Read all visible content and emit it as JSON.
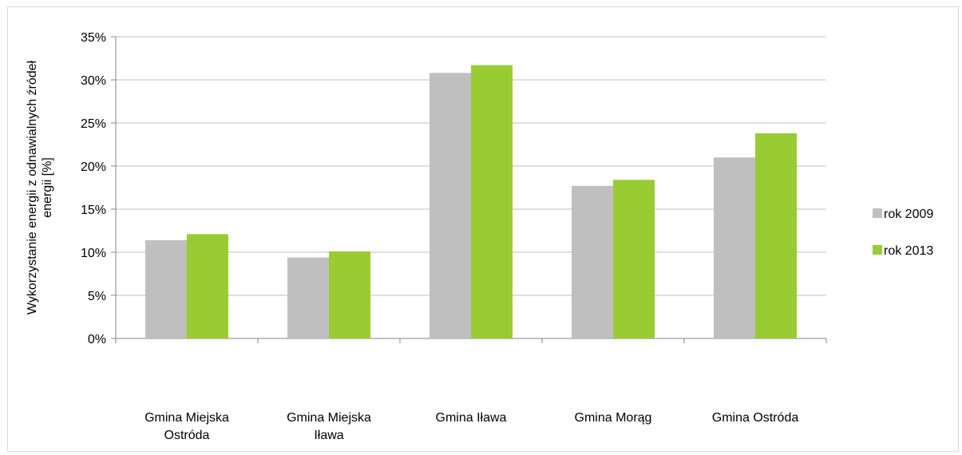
{
  "chart_data": {
    "type": "bar",
    "categories": [
      [
        "Gmina Miejska",
        "Ostróda"
      ],
      [
        "Gmina Miejska",
        "Iława"
      ],
      [
        "Gmina Iława"
      ],
      [
        "Gmina Morąg"
      ],
      [
        "Gmina Ostróda"
      ]
    ],
    "series": [
      {
        "name": "rok 2009",
        "color": "#bfbfbf",
        "values": [
          0.114,
          0.094,
          0.308,
          0.177,
          0.21
        ]
      },
      {
        "name": "rok 2013",
        "color": "#99cc33",
        "values": [
          0.121,
          0.101,
          0.317,
          0.184,
          0.238
        ]
      }
    ],
    "ylabel": [
      "Wykorzystanie energii z odnawialnych źródeł",
      "energii [%]"
    ],
    "ylim": [
      0,
      0.35
    ],
    "yticks": [
      "0%",
      "5%",
      "10%",
      "15%",
      "20%",
      "25%",
      "30%",
      "35%"
    ],
    "grid": true,
    "legend_position": "right"
  }
}
